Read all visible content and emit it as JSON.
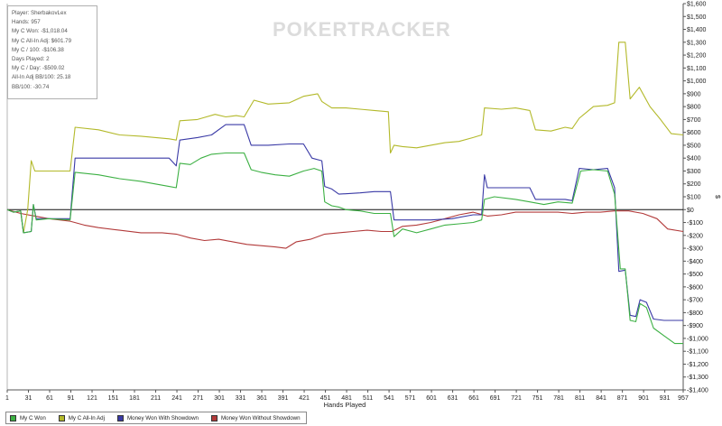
{
  "info_box": {
    "lines": [
      "Player: SherbakovLex",
      "Hands: 957",
      "My C Won: -$1,018.04",
      "My C All-In Adj: $601.79",
      "My C / 100: -$106.38",
      "Days Played: 2",
      "My C / Day: -$509.02",
      "All-In Adj BB/100: 25.18",
      "BB/100: -30.74"
    ]
  },
  "watermark": {
    "text": "POKERTRACKER"
  },
  "legend": {
    "items": [
      {
        "label": "My C Won",
        "color": "#3cb043"
      },
      {
        "label": "My C All-In Adj",
        "color": "#b3b92a"
      },
      {
        "label": "Money Won With Showdown",
        "color": "#3a3aa6"
      },
      {
        "label": "Money Won Without Showdown",
        "color": "#b23a3a"
      }
    ]
  },
  "chart_data": {
    "type": "line",
    "xlabel": "Hands Played",
    "ylabel": "$",
    "xlim": [
      1,
      957
    ],
    "ylim": [
      -1400,
      1600
    ],
    "x_ticks": [
      1,
      31,
      61,
      91,
      121,
      151,
      181,
      211,
      241,
      271,
      301,
      331,
      361,
      391,
      421,
      451,
      481,
      511,
      541,
      571,
      601,
      631,
      661,
      691,
      721,
      751,
      781,
      811,
      841,
      871,
      901,
      931,
      957
    ],
    "y_ticks": [
      1600,
      1500,
      1400,
      1300,
      1200,
      1100,
      1000,
      900,
      800,
      700,
      600,
      500,
      400,
      300,
      200,
      100,
      0,
      -100,
      -200,
      -300,
      -400,
      -500,
      -600,
      -700,
      -800,
      -900,
      -1000,
      -1100,
      -1200,
      -1300,
      -1400
    ],
    "y_tick_labels": [
      "$1,600",
      "$1,500",
      "$1,400",
      "$1,300",
      "$1,200",
      "$1,100",
      "$1,000",
      "$900",
      "$800",
      "$700",
      "$600",
      "$500",
      "$400",
      "$300",
      "$200",
      "$100",
      "$0",
      "-$100",
      "-$200",
      "-$300",
      "-$400",
      "-$500",
      "-$600",
      "-$700",
      "-$800",
      "-$900",
      "-$1,000",
      "-$1,100",
      "-$1,200",
      "-$1,300",
      "-$1,400"
    ],
    "zero_line": true,
    "grid": false,
    "legend_position": "bottom-left",
    "series": [
      {
        "name": "My C Won",
        "color": "#3cb043",
        "points": [
          [
            1,
            0
          ],
          [
            10,
            -20
          ],
          [
            20,
            -10
          ],
          [
            24,
            -180
          ],
          [
            35,
            -170
          ],
          [
            38,
            40
          ],
          [
            42,
            -80
          ],
          [
            60,
            -70
          ],
          [
            90,
            -80
          ],
          [
            97,
            290
          ],
          [
            130,
            270
          ],
          [
            160,
            240
          ],
          [
            190,
            220
          ],
          [
            230,
            180
          ],
          [
            240,
            170
          ],
          [
            245,
            360
          ],
          [
            260,
            350
          ],
          [
            275,
            400
          ],
          [
            290,
            430
          ],
          [
            310,
            440
          ],
          [
            325,
            440
          ],
          [
            336,
            440
          ],
          [
            346,
            310
          ],
          [
            360,
            290
          ],
          [
            380,
            270
          ],
          [
            400,
            260
          ],
          [
            420,
            300
          ],
          [
            435,
            320
          ],
          [
            446,
            300
          ],
          [
            450,
            60
          ],
          [
            460,
            30
          ],
          [
            470,
            20
          ],
          [
            480,
            0
          ],
          [
            500,
            -10
          ],
          [
            520,
            -30
          ],
          [
            543,
            -30
          ],
          [
            548,
            -210
          ],
          [
            560,
            -150
          ],
          [
            580,
            -180
          ],
          [
            600,
            -150
          ],
          [
            620,
            -120
          ],
          [
            640,
            -110
          ],
          [
            660,
            -100
          ],
          [
            672,
            -80
          ],
          [
            676,
            80
          ],
          [
            690,
            100
          ],
          [
            720,
            80
          ],
          [
            740,
            60
          ],
          [
            760,
            40
          ],
          [
            780,
            60
          ],
          [
            800,
            50
          ],
          [
            812,
            300
          ],
          [
            830,
            310
          ],
          [
            850,
            300
          ],
          [
            860,
            120
          ],
          [
            868,
            -460
          ],
          [
            875,
            -460
          ],
          [
            882,
            -860
          ],
          [
            890,
            -870
          ],
          [
            896,
            -730
          ],
          [
            905,
            -760
          ],
          [
            915,
            -920
          ],
          [
            930,
            -980
          ],
          [
            945,
            -1040
          ],
          [
            957,
            -1040
          ]
        ]
      },
      {
        "name": "My C All-In Adj",
        "color": "#b3b92a",
        "points": [
          [
            1,
            0
          ],
          [
            10,
            -20
          ],
          [
            20,
            -10
          ],
          [
            24,
            -180
          ],
          [
            30,
            0
          ],
          [
            35,
            380
          ],
          [
            40,
            300
          ],
          [
            60,
            300
          ],
          [
            90,
            300
          ],
          [
            97,
            640
          ],
          [
            130,
            620
          ],
          [
            160,
            580
          ],
          [
            190,
            570
          ],
          [
            230,
            550
          ],
          [
            240,
            540
          ],
          [
            245,
            690
          ],
          [
            270,
            700
          ],
          [
            295,
            740
          ],
          [
            310,
            720
          ],
          [
            325,
            730
          ],
          [
            336,
            720
          ],
          [
            350,
            850
          ],
          [
            370,
            820
          ],
          [
            400,
            830
          ],
          [
            420,
            880
          ],
          [
            440,
            900
          ],
          [
            446,
            840
          ],
          [
            460,
            790
          ],
          [
            480,
            790
          ],
          [
            500,
            780
          ],
          [
            520,
            770
          ],
          [
            540,
            760
          ],
          [
            543,
            440
          ],
          [
            548,
            500
          ],
          [
            560,
            490
          ],
          [
            580,
            480
          ],
          [
            600,
            500
          ],
          [
            620,
            520
          ],
          [
            640,
            530
          ],
          [
            660,
            560
          ],
          [
            672,
            580
          ],
          [
            676,
            790
          ],
          [
            700,
            780
          ],
          [
            720,
            790
          ],
          [
            740,
            770
          ],
          [
            748,
            620
          ],
          [
            770,
            610
          ],
          [
            790,
            640
          ],
          [
            800,
            630
          ],
          [
            810,
            710
          ],
          [
            830,
            800
          ],
          [
            850,
            810
          ],
          [
            860,
            830
          ],
          [
            866,
            1300
          ],
          [
            875,
            1300
          ],
          [
            882,
            860
          ],
          [
            895,
            950
          ],
          [
            910,
            800
          ],
          [
            925,
            700
          ],
          [
            940,
            590
          ],
          [
            957,
            580
          ]
        ]
      },
      {
        "name": "Money Won With Showdown",
        "color": "#3a3aa6",
        "points": [
          [
            1,
            0
          ],
          [
            10,
            -20
          ],
          [
            20,
            -10
          ],
          [
            24,
            -180
          ],
          [
            35,
            -170
          ],
          [
            38,
            40
          ],
          [
            42,
            -70
          ],
          [
            60,
            -70
          ],
          [
            90,
            -70
          ],
          [
            97,
            400
          ],
          [
            130,
            400
          ],
          [
            160,
            400
          ],
          [
            190,
            400
          ],
          [
            230,
            400
          ],
          [
            240,
            340
          ],
          [
            245,
            540
          ],
          [
            270,
            560
          ],
          [
            290,
            580
          ],
          [
            310,
            660
          ],
          [
            336,
            660
          ],
          [
            346,
            500
          ],
          [
            370,
            500
          ],
          [
            400,
            510
          ],
          [
            420,
            510
          ],
          [
            432,
            400
          ],
          [
            446,
            380
          ],
          [
            450,
            180
          ],
          [
            460,
            160
          ],
          [
            470,
            120
          ],
          [
            500,
            130
          ],
          [
            520,
            140
          ],
          [
            543,
            140
          ],
          [
            548,
            -80
          ],
          [
            570,
            -80
          ],
          [
            600,
            -80
          ],
          [
            630,
            -70
          ],
          [
            660,
            -40
          ],
          [
            672,
            -40
          ],
          [
            676,
            270
          ],
          [
            680,
            170
          ],
          [
            700,
            170
          ],
          [
            720,
            170
          ],
          [
            740,
            170
          ],
          [
            748,
            80
          ],
          [
            770,
            80
          ],
          [
            790,
            80
          ],
          [
            800,
            70
          ],
          [
            810,
            320
          ],
          [
            830,
            310
          ],
          [
            850,
            320
          ],
          [
            860,
            170
          ],
          [
            866,
            -480
          ],
          [
            875,
            -470
          ],
          [
            882,
            -820
          ],
          [
            890,
            -830
          ],
          [
            896,
            -700
          ],
          [
            905,
            -720
          ],
          [
            915,
            -850
          ],
          [
            930,
            -860
          ],
          [
            945,
            -860
          ],
          [
            957,
            -860
          ]
        ]
      },
      {
        "name": "Money Won Without Showdown",
        "color": "#b23a3a",
        "points": [
          [
            1,
            0
          ],
          [
            20,
            -30
          ],
          [
            40,
            -50
          ],
          [
            60,
            -70
          ],
          [
            90,
            -90
          ],
          [
            110,
            -120
          ],
          [
            130,
            -140
          ],
          [
            160,
            -160
          ],
          [
            190,
            -180
          ],
          [
            220,
            -180
          ],
          [
            240,
            -190
          ],
          [
            260,
            -220
          ],
          [
            280,
            -240
          ],
          [
            300,
            -230
          ],
          [
            320,
            -250
          ],
          [
            340,
            -270
          ],
          [
            360,
            -280
          ],
          [
            380,
            -290
          ],
          [
            395,
            -300
          ],
          [
            410,
            -250
          ],
          [
            430,
            -230
          ],
          [
            450,
            -190
          ],
          [
            470,
            -180
          ],
          [
            490,
            -170
          ],
          [
            510,
            -160
          ],
          [
            530,
            -170
          ],
          [
            545,
            -170
          ],
          [
            560,
            -130
          ],
          [
            580,
            -120
          ],
          [
            600,
            -100
          ],
          [
            620,
            -70
          ],
          [
            640,
            -40
          ],
          [
            660,
            -20
          ],
          [
            680,
            -50
          ],
          [
            700,
            -40
          ],
          [
            720,
            -20
          ],
          [
            740,
            -20
          ],
          [
            760,
            -20
          ],
          [
            780,
            -20
          ],
          [
            800,
            -30
          ],
          [
            820,
            -20
          ],
          [
            840,
            -20
          ],
          [
            860,
            -10
          ],
          [
            880,
            -10
          ],
          [
            900,
            -30
          ],
          [
            920,
            -70
          ],
          [
            935,
            -150
          ],
          [
            957,
            -170
          ]
        ]
      }
    ]
  }
}
